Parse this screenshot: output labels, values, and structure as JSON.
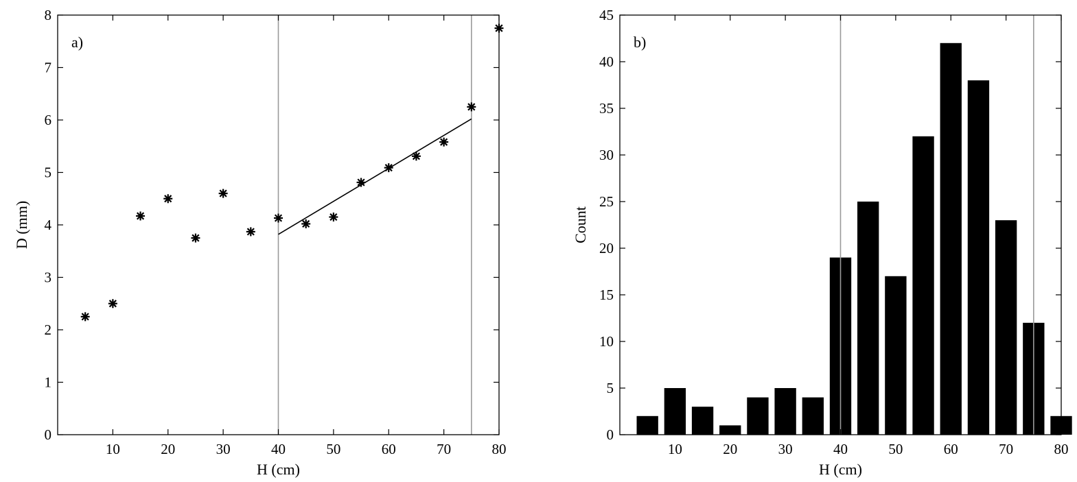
{
  "chart_data": [
    {
      "panel_label": "a)",
      "type": "scatter",
      "xlabel": "H (cm)",
      "ylabel": "D (mm)",
      "xlim": [
        0,
        80
      ],
      "ylim": [
        0,
        8
      ],
      "xticks": [
        10,
        20,
        30,
        40,
        50,
        60,
        70,
        80
      ],
      "yticks": [
        0,
        1,
        2,
        3,
        4,
        5,
        6,
        7,
        8
      ],
      "marker": "*",
      "grid": false,
      "series": [
        {
          "x": [
            5,
            10,
            15,
            20,
            25,
            30,
            35,
            40,
            45,
            50,
            55,
            60,
            65,
            70,
            75,
            80
          ],
          "y": [
            2.25,
            2.5,
            4.17,
            4.5,
            3.75,
            4.6,
            3.87,
            4.13,
            4.02,
            4.15,
            4.81,
            5.09,
            5.31,
            5.58,
            6.25,
            7.75
          ]
        }
      ],
      "fit_line": {
        "x": [
          40,
          75
        ],
        "y": [
          3.82,
          6.02
        ]
      },
      "vlines": [
        40,
        75
      ],
      "vline_color": "#9a9a9a"
    },
    {
      "panel_label": "b)",
      "type": "bar",
      "xlabel": "H (cm)",
      "ylabel": "Count",
      "xlim": [
        0,
        80
      ],
      "ylim": [
        0,
        45
      ],
      "xticks": [
        10,
        20,
        30,
        40,
        50,
        60,
        70,
        80
      ],
      "yticks": [
        0,
        5,
        10,
        15,
        20,
        25,
        30,
        35,
        40,
        45
      ],
      "categories": [
        5,
        10,
        15,
        20,
        25,
        30,
        35,
        40,
        45,
        50,
        55,
        60,
        65,
        70,
        75,
        80
      ],
      "values": [
        2,
        5,
        3,
        1,
        4,
        5,
        4,
        19,
        25,
        17,
        32,
        42,
        38,
        23,
        12,
        2
      ],
      "bar_color": "#000000",
      "grid": false,
      "vlines": [
        40,
        75
      ],
      "vline_color": "#9a9a9a"
    }
  ]
}
